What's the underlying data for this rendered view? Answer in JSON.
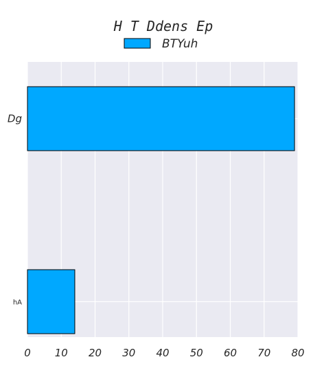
{
  "chart_data": {
    "type": "bar",
    "orientation": "horizontal",
    "title": "H T Ddens Ep",
    "xlabel": "",
    "ylabel": "",
    "categories": [
      "Dg",
      "hA"
    ],
    "series": [
      {
        "name": "BTYuh",
        "values": [
          79,
          14
        ],
        "color": "#00a8ff"
      }
    ],
    "xlim": [
      0,
      80
    ],
    "xticks": [
      0,
      10,
      20,
      30,
      40,
      50,
      60,
      70,
      80
    ],
    "grid": true,
    "legend": "top-center",
    "background": "#eaeaf2",
    "edge_color": "#000000"
  }
}
